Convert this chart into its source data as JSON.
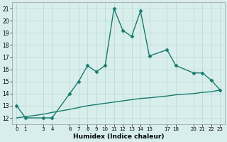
{
  "x": [
    0,
    1,
    3,
    4,
    6,
    7,
    8,
    9,
    10,
    11,
    12,
    13,
    14,
    15,
    17,
    18,
    20,
    21,
    22,
    23
  ],
  "y_main": [
    13,
    12,
    12,
    12,
    14,
    15,
    16.3,
    15.8,
    16.3,
    21,
    19.2,
    18.7,
    20.8,
    17.1,
    17.6,
    16.3,
    15.7,
    15.7,
    15.1,
    14.3
  ],
  "y_base": [
    12.0,
    12.1,
    12.3,
    12.45,
    12.7,
    12.85,
    13.0,
    13.1,
    13.2,
    13.3,
    13.4,
    13.5,
    13.6,
    13.65,
    13.8,
    13.9,
    14.0,
    14.1,
    14.15,
    14.3
  ],
  "color": "#1a7a6e",
  "bg_color": "#d8eeec",
  "grid_color": "#b8d8d4",
  "xlabel": "Humidex (Indice chaleur)",
  "ylim": [
    11.5,
    21.5
  ],
  "xlim": [
    -0.5,
    23.5
  ],
  "yticks": [
    12,
    13,
    14,
    15,
    16,
    17,
    18,
    19,
    20,
    21
  ],
  "xticks": [
    0,
    1,
    3,
    4,
    6,
    7,
    8,
    9,
    10,
    11,
    12,
    13,
    14,
    15,
    17,
    18,
    20,
    21,
    22,
    23
  ],
  "xtick_labels": [
    "0",
    "1",
    "3",
    "4",
    "6",
    "7",
    "8",
    "9",
    "10",
    "11",
    "12",
    "13",
    "14",
    "15",
    "17",
    "18",
    "20",
    "21",
    "22",
    "23"
  ],
  "marker": "D",
  "markersize": 2.5,
  "linewidth": 1.0
}
